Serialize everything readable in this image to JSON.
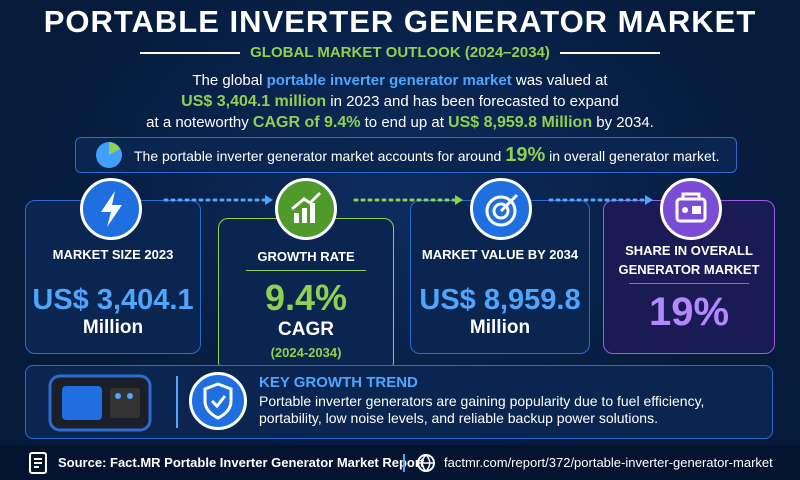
{
  "header": {
    "title": "PORTABLE INVERTER GENERATOR MARKET",
    "subtitle": "GLOBAL MARKET OUTLOOK (2024–2034)"
  },
  "summary": {
    "lines": [
      [
        "The global ",
        "portable inverter generator market",
        " was valued at"
      ],
      [
        "US$ 3,404.1 million",
        " in 2023 and has been forecasted to expand"
      ],
      [
        "at a noteworthy ",
        "CAGR of 9.4%",
        " to end up at ",
        "US$ 8,959.8 Million",
        " by 2034."
      ]
    ]
  },
  "share_banner": [
    "The portable inverter generator market accounts for around ",
    "19%",
    " in overall generator market."
  ],
  "cards": [
    {
      "label": "MARKET SIZE 2023",
      "value": "US$ 3,404.1",
      "unit": "Million"
    },
    {
      "label": "GROWTH RATE",
      "value": "9.4%",
      "unit": "CAGR",
      "period": "(2024-2034)"
    },
    {
      "label": "MARKET VALUE BY 2034",
      "value": "US$ 8,959.8",
      "unit": "Million"
    },
    {
      "label": "SHARE IN OVERALL GENERATOR MARKET",
      "value": "19%"
    }
  ],
  "trend": {
    "title": "KEY GROWTH TREND",
    "text": "Portable inverter generators are gaining popularity due to fuel efficiency, portability, low noise levels, and reliable backup power solutions."
  },
  "footer": {
    "source": "Source: Fact.MR Portable Inverter Generator Market Report",
    "url": "factmr.com/report/372/portable-inverter-generator-market"
  }
}
